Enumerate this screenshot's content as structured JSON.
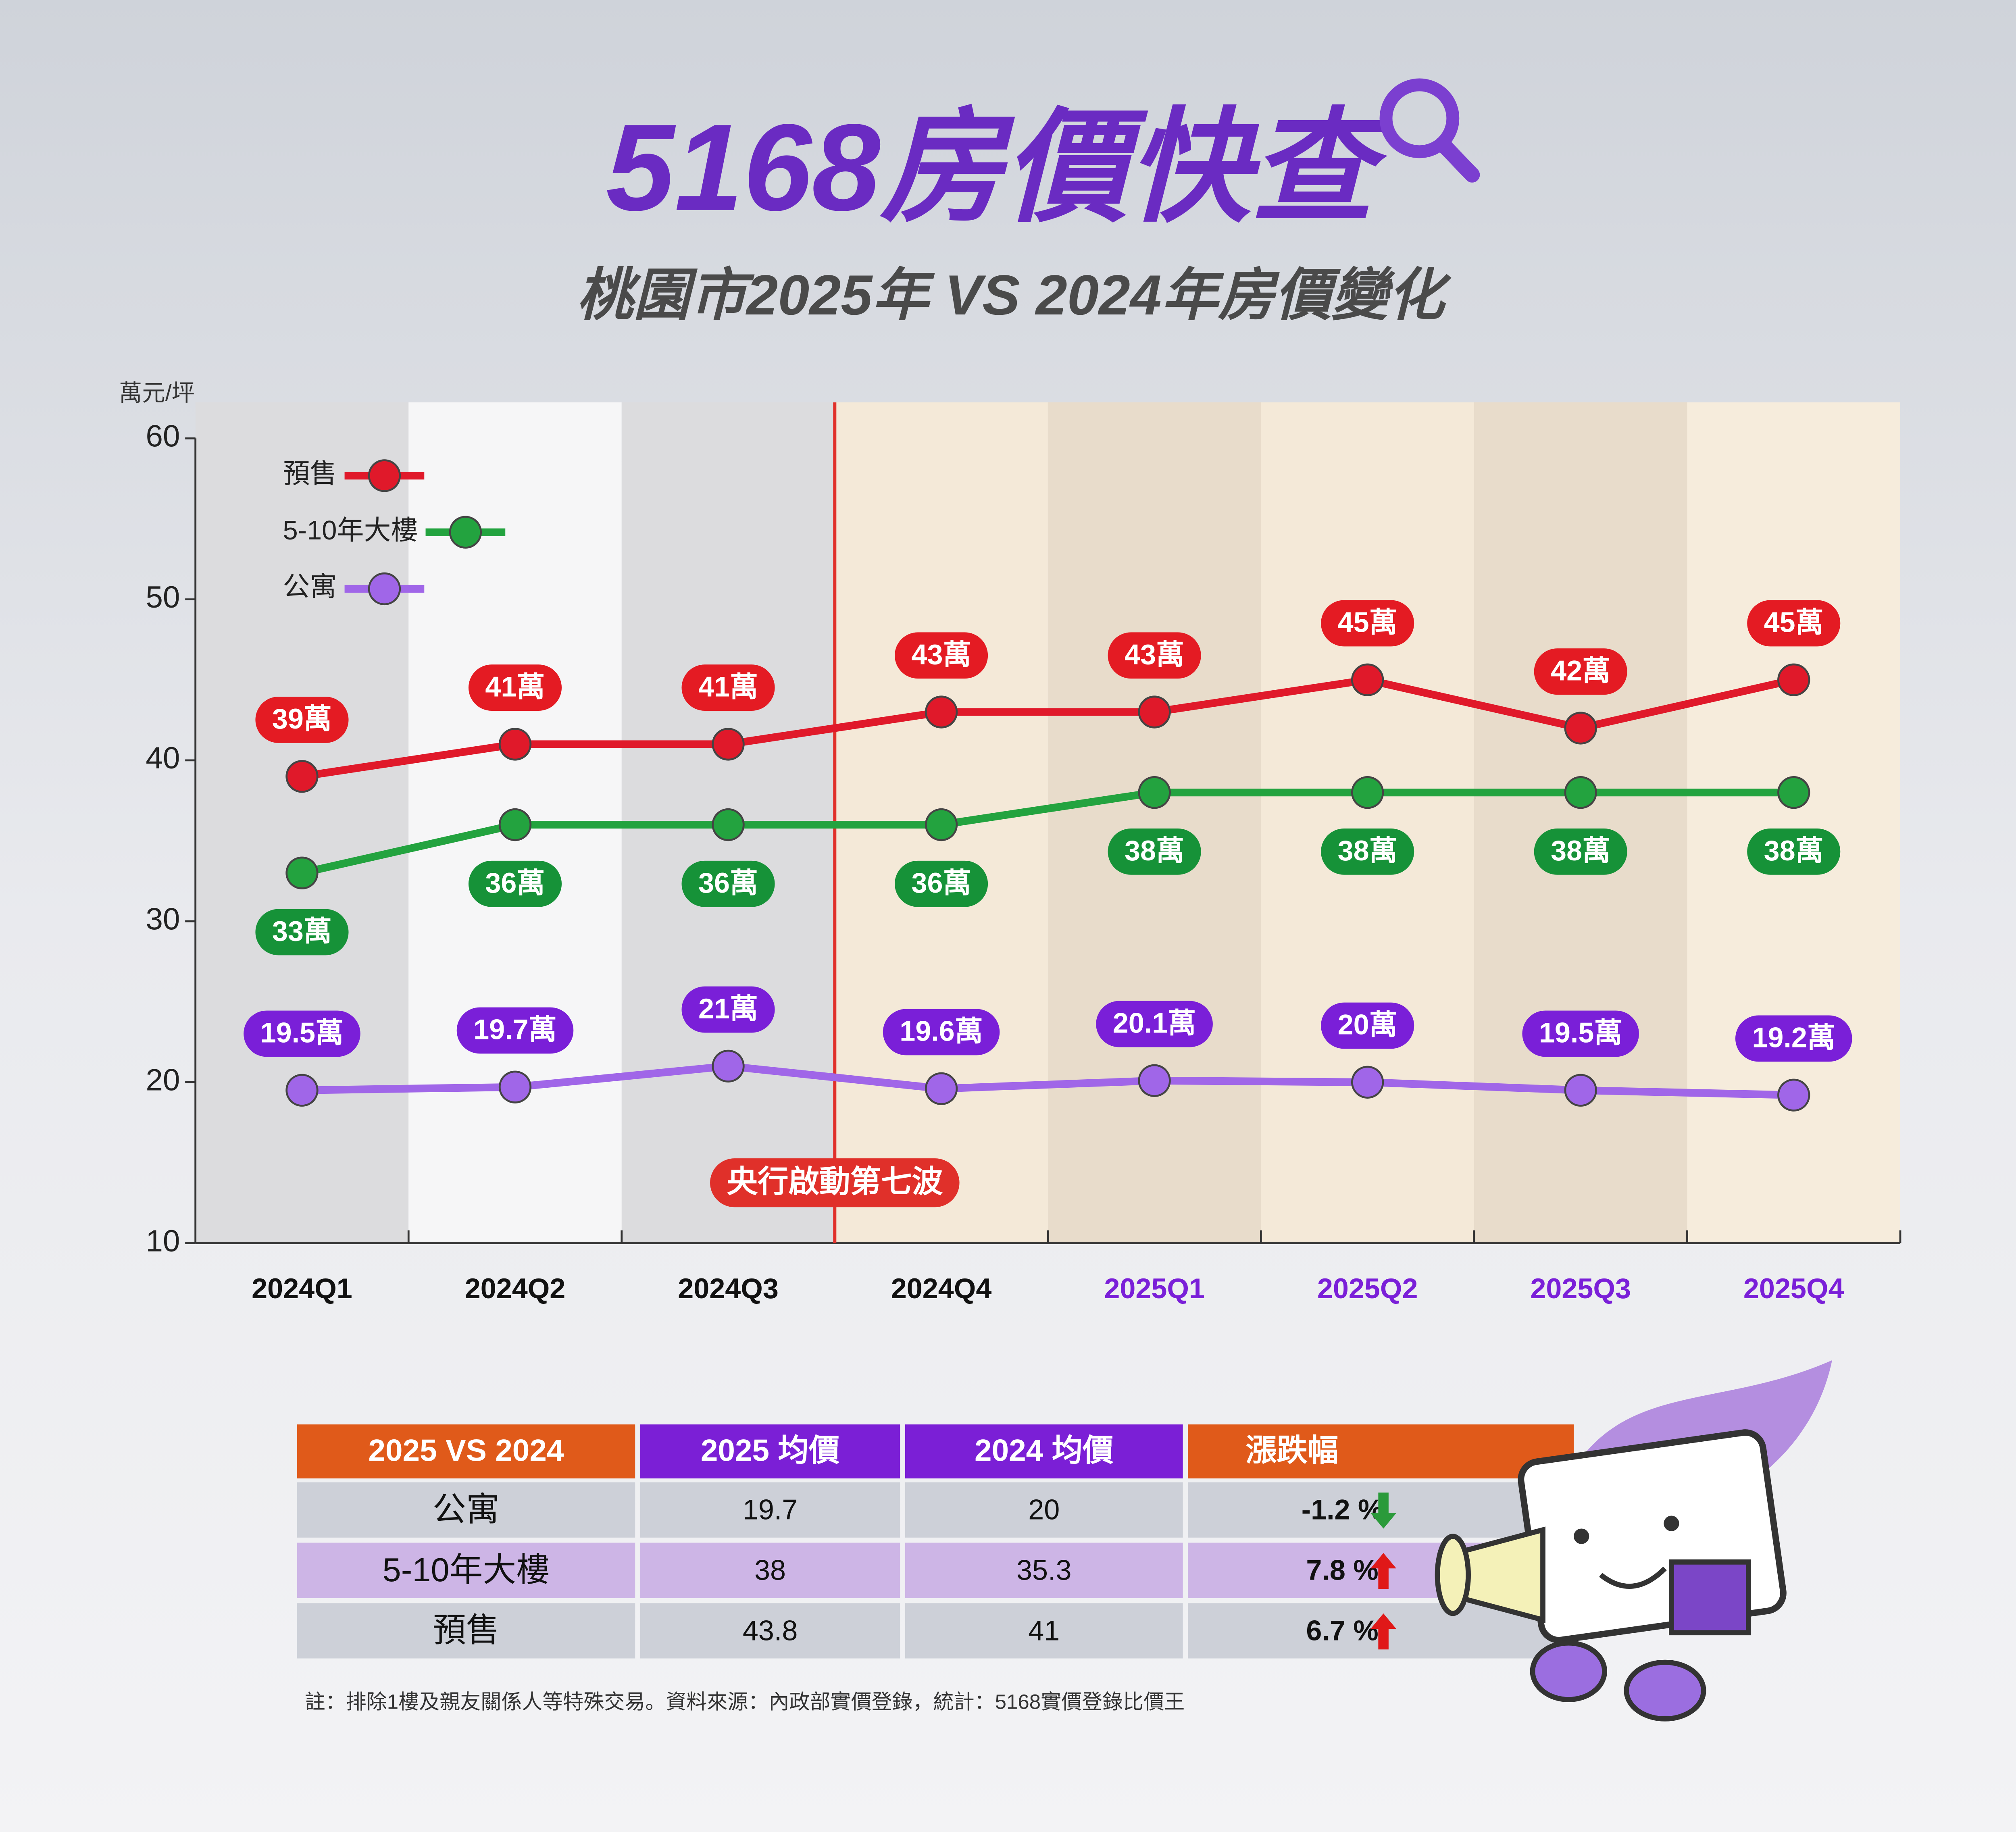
{
  "header": {
    "title": "5168房價快查",
    "subtitle": "桃園市2025年 VS 2024年房價變化"
  },
  "chart_data": {
    "type": "line",
    "y_label": "萬元/坪",
    "categories": [
      "2024Q1",
      "2024Q2",
      "2024Q3",
      "2024Q4",
      "2025Q1",
      "2025Q2",
      "2025Q3",
      "2025Q4"
    ],
    "series": [
      {
        "name": "預售",
        "color": "#e0192a",
        "label_color": "#e41b23",
        "values": [
          39,
          41,
          41,
          43,
          43,
          45,
          42,
          45
        ],
        "value_labels": [
          "39萬",
          "41萬",
          "41萬",
          "43萬",
          "43萬",
          "45萬",
          "42萬",
          "45萬"
        ]
      },
      {
        "name": "5-10年大樓",
        "color": "#23a33f",
        "label_color": "#169238",
        "values": [
          33,
          36,
          36,
          36,
          38,
          38,
          38,
          38
        ],
        "value_labels": [
          "33萬",
          "36萬",
          "36萬",
          "36萬",
          "38萬",
          "38萬",
          "38萬",
          "38萬"
        ]
      },
      {
        "name": "公寓",
        "color": "#a066e8",
        "label_color": "#7a1fd8",
        "values": [
          19.5,
          19.7,
          21,
          19.6,
          20.1,
          20,
          19.5,
          19.2
        ],
        "value_labels": [
          "19.5萬",
          "19.7萬",
          "21萬",
          "19.6萬",
          "20.1萬",
          "20萬",
          "19.5萬",
          "19.2萬"
        ]
      }
    ],
    "ylim": [
      10,
      60
    ],
    "yticks": [
      10,
      20,
      30,
      40,
      50,
      60
    ],
    "legend": "top-left",
    "annotation": "央行啟動第七波"
  },
  "table": {
    "columns": [
      "2025 VS 2024",
      "2025 均價",
      "2024 均價",
      "漲跌幅"
    ],
    "rows": [
      [
        "公寓",
        "19.7",
        "20",
        "-1.2 %"
      ],
      [
        "5-10年大樓",
        "38",
        "35.3",
        "7.8 %"
      ],
      [
        "預售",
        "43.8",
        "41",
        "6.7 %"
      ]
    ]
  },
  "footnote": "註：排除1樓及親友關係人等特殊交易。資料來源：內政部實價登錄，統計：5168實價登錄比價王"
}
